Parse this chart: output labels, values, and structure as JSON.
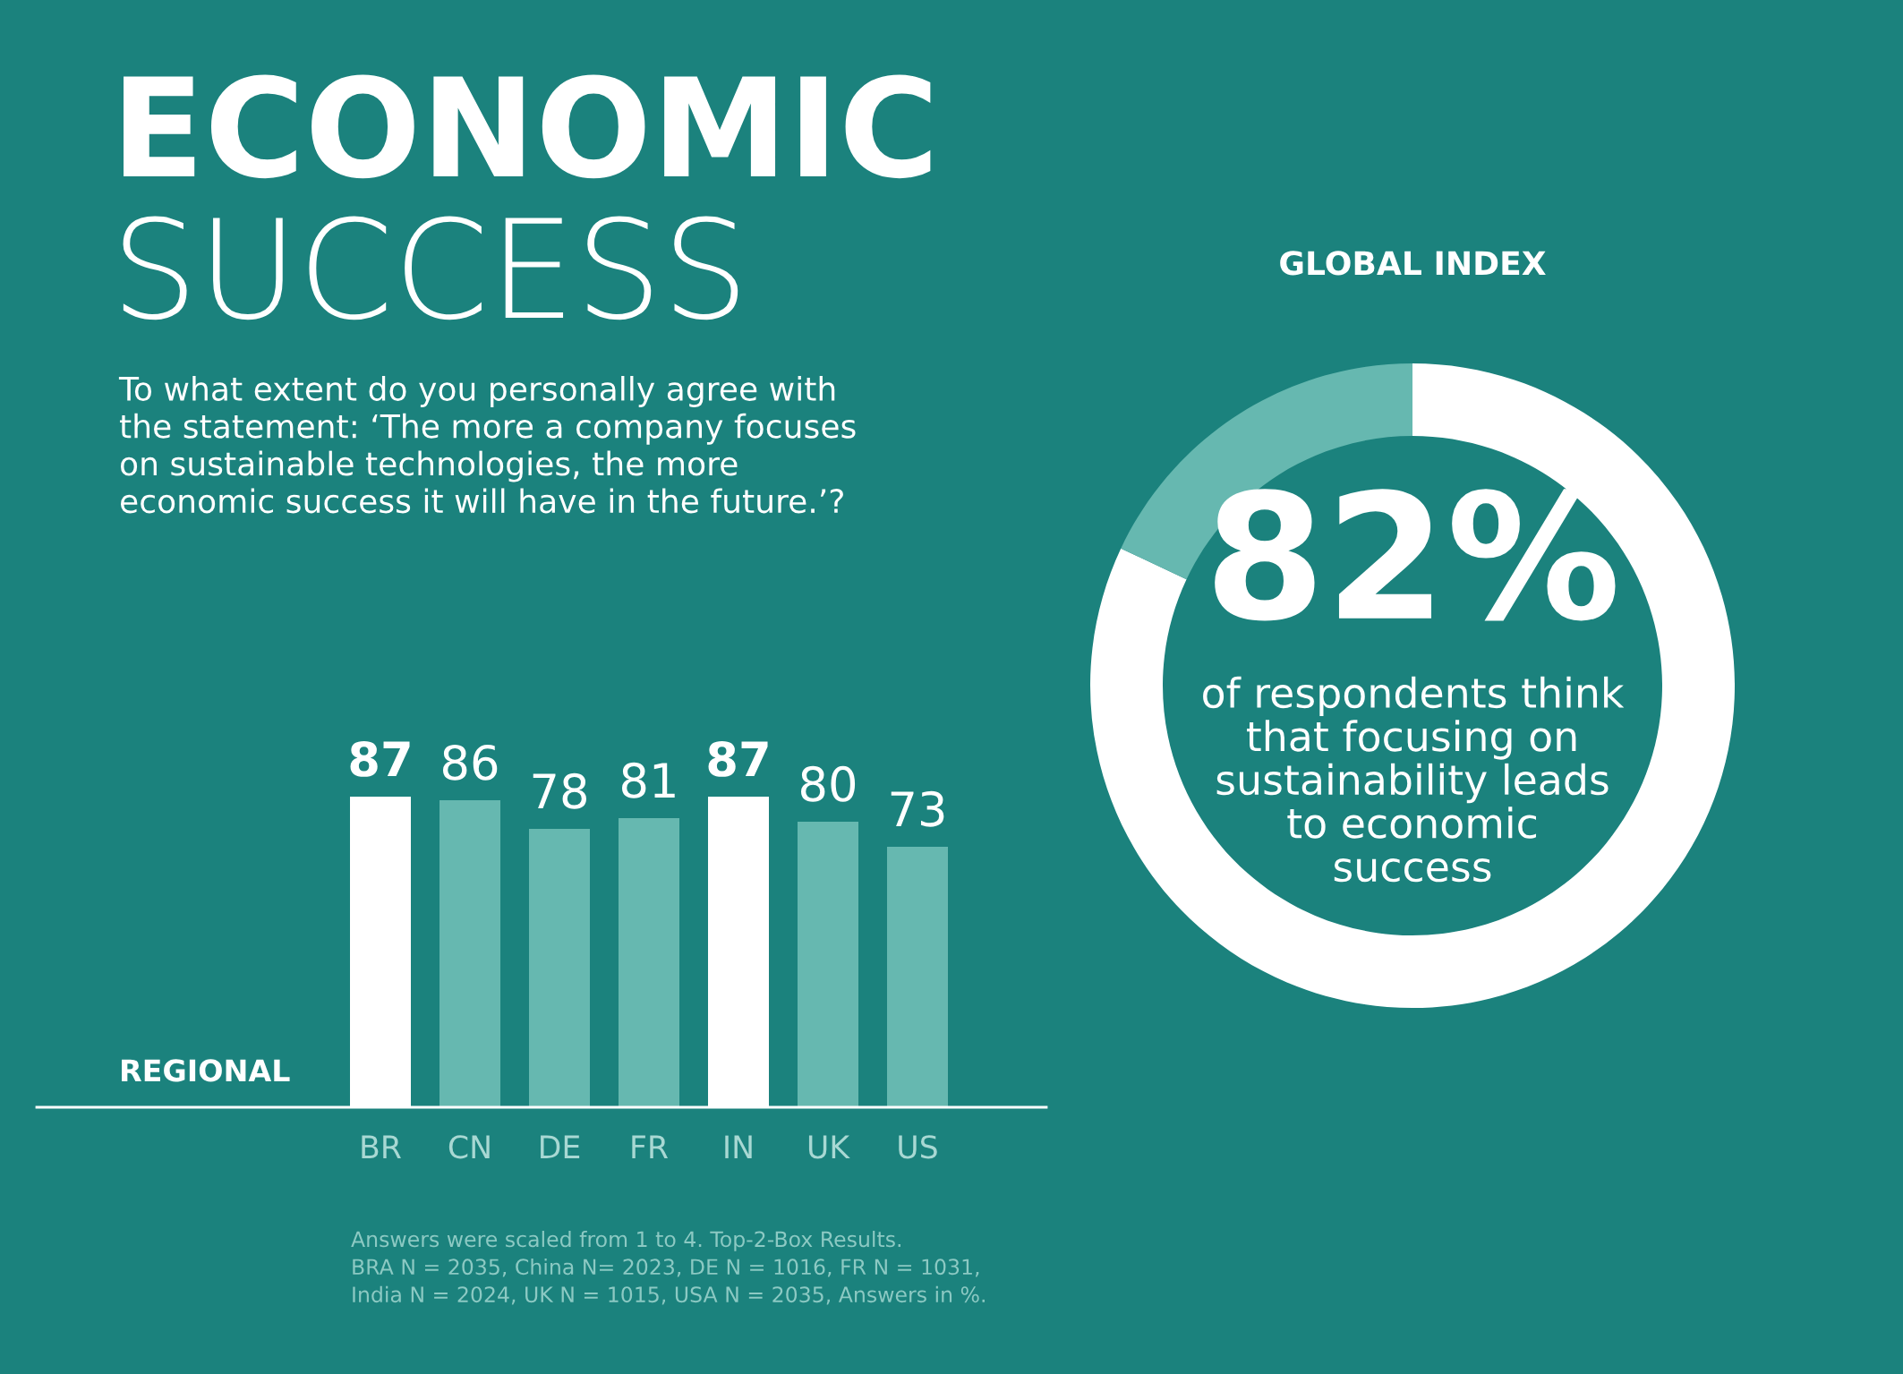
{
  "chart_data": [
    {
      "type": "bar",
      "title": "ECONOMIC\nSUCCESS",
      "subtitle": "To what extent do you personally agree with\nthe statement: ‘The more a company focuses\non sustainable technologies, the more\neconomic success it will have in the future.’?",
      "categories": [
        "BR",
        "CN",
        "DE",
        "FR",
        "IN",
        "UK",
        "US"
      ],
      "values": [
        87,
        86,
        78,
        81,
        87,
        80,
        73
      ],
      "colors": [
        "#ffffff",
        "#66b8b0",
        "#66b8b0",
        "#66b8b0",
        "#ffffff",
        "#66b8b0",
        "#66b8b0"
      ],
      "data_labels": true,
      "grid": false,
      "legend": false,
      "annotations": [
        "REGIONAL",
        "Answers were scaled from 1 to 4. Top-2-Box Results.\nBRA N = 2035, China N= 2023, DE N = 1016, FR N = 1031,\nIndia N = 2024, UK N = 1015, USA N = 2035, Answers in %."
      ]
    },
    {
      "type": "donut",
      "title": "GLOBAL INDEX",
      "categories": [
        null,
        null
      ],
      "values": [
        82,
        18
      ],
      "colors": [
        "#ffffff",
        "#66b8b0"
      ],
      "value_labels": [
        "82%",
        null
      ],
      "legend": false,
      "annotations": [
        "of respondents think\nthat focusing on\nsustainability leads\nto economic\nsuccess"
      ]
    }
  ]
}
